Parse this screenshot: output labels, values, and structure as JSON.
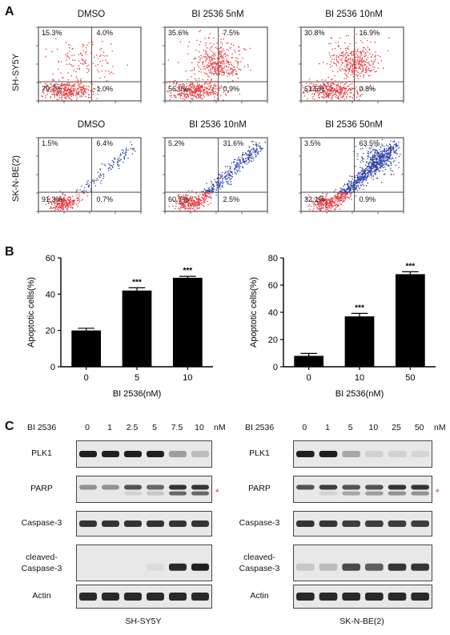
{
  "panels": {
    "A": "A",
    "B": "B",
    "C": "C"
  },
  "panel_a": {
    "rows": [
      {
        "cell_line": "SH-SY5Y",
        "plots": [
          {
            "title": "DMSO",
            "quadrants": {
              "ul": "15.3%",
              "ur": "4.0%",
              "ll": "79.7%",
              "lr": "1.0%"
            }
          },
          {
            "title": "BI 2536 5nM",
            "quadrants": {
              "ul": "35.6%",
              "ur": "7.5%",
              "ll": "56.0%",
              "lr": "0.9%"
            }
          },
          {
            "title": "BI 2536 10nM",
            "quadrants": {
              "ul": "30.8%",
              "ur": "16.9%",
              "ll": "51.5%",
              "lr": "0.8%"
            }
          }
        ]
      },
      {
        "cell_line": "SK-N-BE(2)",
        "plots": [
          {
            "title": "DMSO",
            "quadrants": {
              "ul": "1.5%",
              "ur": "6.4%",
              "ll": "91.3%",
              "lr": "0.7%"
            }
          },
          {
            "title": "BI 2536 10nM",
            "quadrants": {
              "ul": "5.2%",
              "ur": "31.6%",
              "ll": "60.7%",
              "lr": "2.5%"
            }
          },
          {
            "title": "BI 2536 50nM",
            "quadrants": {
              "ul": "3.5%",
              "ur": "63.5%",
              "ll": "32.1%",
              "lr": "0.9%"
            }
          }
        ]
      }
    ],
    "dot_colors": {
      "red": "#e8343a",
      "blue": "#2d3fa6"
    }
  },
  "chart_data": [
    {
      "type": "bar",
      "categories": [
        "0",
        "5",
        "10"
      ],
      "values": [
        20,
        42,
        49
      ],
      "errors": [
        1.2,
        1.5,
        0.8
      ],
      "significance": [
        "",
        "***",
        "***"
      ],
      "xlabel": "BI 2536(nM)",
      "ylabel": "Apoptotic cells(%)",
      "ylim": [
        0,
        60
      ],
      "yticks": [
        "0",
        "20",
        "40",
        "60"
      ],
      "bar_color": "#000000"
    },
    {
      "type": "bar",
      "categories": [
        "0",
        "10",
        "50"
      ],
      "values": [
        8,
        37,
        68
      ],
      "errors": [
        1.8,
        2.2,
        1.8
      ],
      "significance": [
        "",
        "***",
        "***"
      ],
      "xlabel": "BI 2536(nM)",
      "ylabel": "Apoptotic cells(%)",
      "ylim": [
        0,
        80
      ],
      "yticks": [
        "0",
        "20",
        "40",
        "60",
        "80"
      ],
      "bar_color": "#000000"
    }
  ],
  "panel_c": {
    "left": {
      "drug_label": "BI 2536",
      "doses": [
        "0",
        "1",
        "2.5",
        "5",
        "7.5",
        "10"
      ],
      "unit": "nM",
      "cell_line": "SH-SY5Y",
      "blots": [
        {
          "label": "PLK1",
          "star": false
        },
        {
          "label": "PARP",
          "star": true
        },
        {
          "label": "Caspase-3",
          "star": false
        },
        {
          "label": "cleaved-\nCaspase-3",
          "star": false
        },
        {
          "label": "Actin",
          "star": false
        }
      ]
    },
    "right": {
      "drug_label": "BI 2536",
      "doses": [
        "0",
        "1",
        "5",
        "10",
        "25",
        "50"
      ],
      "unit": "nM",
      "cell_line": "SK-N-BE(2)",
      "blots": [
        {
          "label": "PLK1",
          "star": false
        },
        {
          "label": "PARP",
          "star": true
        },
        {
          "label": "Caspase-3",
          "star": false
        },
        {
          "label": "cleaved-\nCaspase-3",
          "star": false
        },
        {
          "label": "Actin",
          "star": false
        }
      ]
    },
    "star_symbol": "*",
    "star_color": "#e0433a",
    "band_intensity": {
      "left": {
        "PLK1": [
          0.95,
          0.95,
          0.95,
          0.95,
          0.35,
          0.2
        ],
        "PARP_upper": [
          0.4,
          0.4,
          0.7,
          0.6,
          0.85,
          0.85
        ],
        "PARP_lower": [
          0.0,
          0.0,
          0.1,
          0.15,
          0.6,
          0.6
        ],
        "Caspase-3": [
          0.85,
          0.85,
          0.85,
          0.85,
          0.85,
          0.85
        ],
        "cleaved-Caspase-3": [
          0.0,
          0.0,
          0.0,
          0.05,
          0.9,
          0.95
        ],
        "Actin": [
          0.9,
          0.9,
          0.9,
          0.9,
          0.9,
          0.9
        ]
      },
      "right": {
        "PLK1": [
          0.95,
          0.95,
          0.3,
          0.1,
          0.1,
          0.08
        ],
        "PARP_upper": [
          0.7,
          0.8,
          0.7,
          0.7,
          0.85,
          0.85
        ],
        "PARP_lower": [
          0.0,
          0.1,
          0.3,
          0.35,
          0.4,
          0.4
        ],
        "Caspase-3": [
          0.85,
          0.85,
          0.8,
          0.8,
          0.8,
          0.8
        ],
        "cleaved-Caspase-3": [
          0.15,
          0.2,
          0.75,
          0.65,
          0.85,
          0.85
        ],
        "Actin": [
          0.9,
          0.9,
          0.9,
          0.9,
          0.9,
          0.9
        ]
      }
    }
  }
}
